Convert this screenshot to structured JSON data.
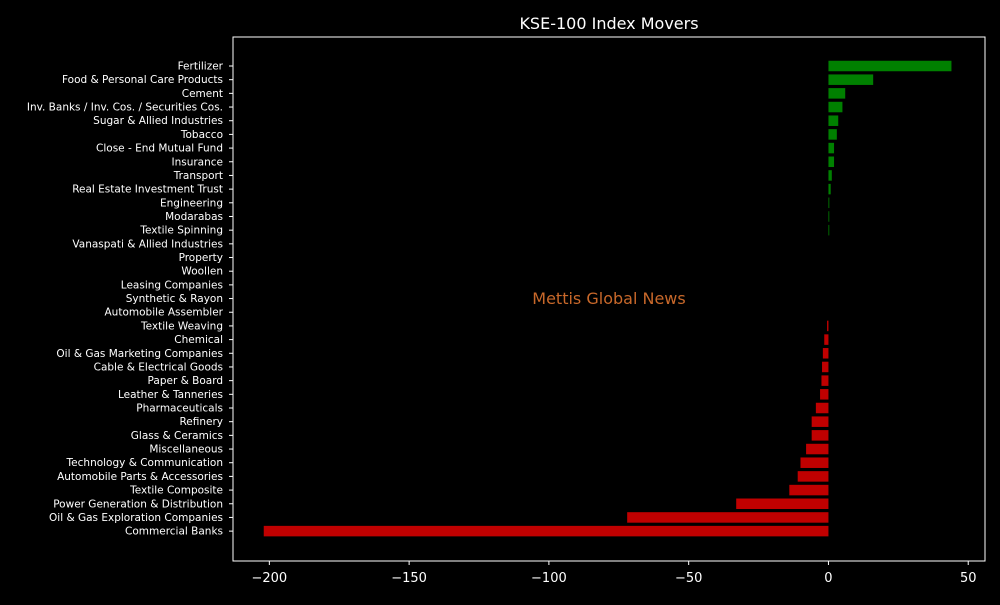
{
  "chart_data": {
    "type": "bar",
    "orientation": "horizontal",
    "title": "KSE-100 Index Movers",
    "watermark": "Mettis Global News",
    "xlabel": "",
    "ylabel": "",
    "xlim": [
      -213,
      56
    ],
    "xticks": [
      -200,
      -150,
      -100,
      -50,
      0,
      50
    ],
    "xtick_labels": [
      "−200",
      "−150",
      "−100",
      "−50",
      "0",
      "50"
    ],
    "categories": [
      "Fertilizer",
      "Food & Personal Care Products",
      "Cement",
      "Inv. Banks / Inv. Cos. / Securities Cos.",
      "Sugar & Allied Industries",
      "Tobacco",
      "Close - End Mutual Fund",
      "Insurance",
      "Transport",
      "Real Estate Investment Trust",
      "Engineering",
      "Modarabas",
      "Textile Spinning",
      "Vanaspati & Allied Industries",
      "Property",
      "Woollen",
      "Leasing Companies",
      "Synthetic & Rayon",
      "Automobile Assembler",
      "Textile Weaving",
      "Chemical",
      "Oil & Gas Marketing Companies",
      "Cable & Electrical Goods",
      "Paper & Board",
      "Leather & Tanneries",
      "Pharmaceuticals",
      "Refinery",
      "Glass & Ceramics",
      "Miscellaneous",
      "Technology & Communication",
      "Automobile Parts & Accessories",
      "Textile Composite",
      "Power Generation & Distribution",
      "Oil & Gas Exploration Companies",
      "Commercial Banks"
    ],
    "values": [
      44,
      16,
      6,
      5,
      3.5,
      3,
      2,
      2,
      1.2,
      0.8,
      0.3,
      0.2,
      0.1,
      0,
      0,
      0,
      0,
      0,
      0,
      -0.5,
      -1.5,
      -2,
      -2.3,
      -2.5,
      -3,
      -4.5,
      -6,
      -6,
      -8,
      -10,
      -11,
      -14,
      -33,
      -72,
      -202
    ],
    "colors": {
      "positive": "#008000",
      "negative": "#c00000",
      "background": "#000000",
      "text": "#ffffff",
      "watermark": "#c8682a"
    },
    "grid": false,
    "legend": "none"
  }
}
